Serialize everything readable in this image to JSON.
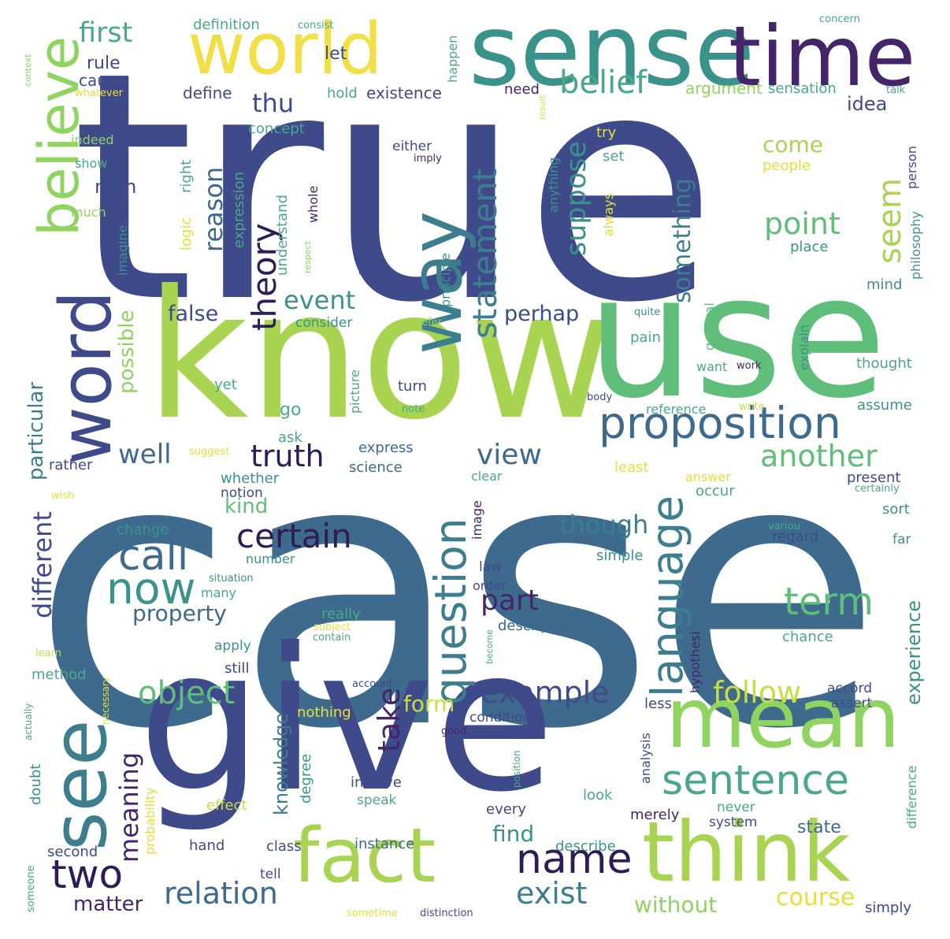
{
  "palette": {
    "background": "#ffffff",
    "c1": "#404b8c",
    "c2": "#3f6790",
    "c3": "#2f8f8c",
    "c4": "#3aa58c",
    "c5": "#6cc87a",
    "c6": "#a5d654",
    "c7": "#e6df3a",
    "c8": "#481e6b",
    "c9": "#5aa0a3"
  },
  "words": [
    {
      "t": "true",
      "c": "#3f4a8a"
    },
    {
      "t": "case",
      "c": "#3d6a8d"
    },
    {
      "t": "give",
      "c": "#3f4a8a"
    },
    {
      "t": "know",
      "c": "#a8d452"
    },
    {
      "t": "use",
      "c": "#5fbe7a"
    },
    {
      "t": "sense",
      "c": "#3a938a"
    },
    {
      "t": "time",
      "c": "#44256a"
    },
    {
      "t": "world",
      "c": "#f0e046"
    },
    {
      "t": "way",
      "c": "#3c7d8e"
    },
    {
      "t": "fact",
      "c": "#a8d452"
    },
    {
      "t": "think",
      "c": "#a8d452"
    },
    {
      "t": "mean",
      "c": "#8fd360"
    },
    {
      "t": "see",
      "c": "#3c7d8e"
    },
    {
      "t": "word",
      "c": "#3f4a8a"
    },
    {
      "t": "believe",
      "c": "#8fd360"
    },
    {
      "t": "proposition",
      "c": "#3d6a8d"
    },
    {
      "t": "sentence",
      "c": "#4aa88a"
    },
    {
      "t": "language",
      "c": "#3c7d8e"
    },
    {
      "t": "question",
      "c": "#3c7d8e"
    },
    {
      "t": "statement",
      "c": "#3c7d8e"
    },
    {
      "t": "name",
      "c": "#2e1c55"
    },
    {
      "t": "two",
      "c": "#2e1c55"
    },
    {
      "t": "now",
      "c": "#3a938a"
    },
    {
      "t": "call",
      "c": "#3d6a8d"
    },
    {
      "t": "theory",
      "c": "#2e1c55"
    },
    {
      "t": "certain",
      "c": "#2e1c55"
    },
    {
      "t": "truth",
      "c": "#2e1c55"
    },
    {
      "t": "object",
      "c": "#5fbe7a"
    },
    {
      "t": "relation",
      "c": "#3d6a8d"
    },
    {
      "t": "exist",
      "c": "#3c7d8e"
    },
    {
      "t": "term",
      "c": "#5fbe7a"
    },
    {
      "t": "example",
      "c": "#3f4a8a"
    },
    {
      "t": "follow",
      "c": "#c8dd42"
    },
    {
      "t": "belief",
      "c": "#4aa88a"
    },
    {
      "t": "seem",
      "c": "#a8d452"
    },
    {
      "t": "suppose",
      "c": "#3a938a"
    },
    {
      "t": "something",
      "c": "#3c7d8e"
    },
    {
      "t": "point",
      "c": "#5fbe7a"
    },
    {
      "t": "another",
      "c": "#5fbe7a"
    },
    {
      "t": "view",
      "c": "#3d6a8d"
    },
    {
      "t": "part",
      "c": "#44256a"
    },
    {
      "t": "though",
      "c": "#3c7d8e"
    },
    {
      "t": "take",
      "c": "#44256a"
    },
    {
      "t": "first",
      "c": "#4aa88a"
    },
    {
      "t": "thu",
      "c": "#3f4a8a"
    },
    {
      "t": "reason",
      "c": "#3d6a8d"
    },
    {
      "t": "event",
      "c": "#3a938a"
    },
    {
      "t": "well",
      "c": "#3d6a8d"
    },
    {
      "t": "meaning",
      "c": "#44256a"
    },
    {
      "t": "different",
      "c": "#3f4a8a"
    },
    {
      "t": "particular",
      "c": "#3c7d8e"
    },
    {
      "t": "possible",
      "c": "#8fd360"
    },
    {
      "t": "false",
      "c": "#3f4a8a"
    },
    {
      "t": "perhap",
      "c": "#3f4a8a"
    },
    {
      "t": "kind",
      "c": "#5fbe7a"
    },
    {
      "t": "property",
      "c": "#3d6a8d"
    },
    {
      "t": "knowledge",
      "c": "#3c7d8e"
    },
    {
      "t": "form",
      "c": "#c8dd42"
    },
    {
      "t": "find",
      "c": "#3a938a"
    },
    {
      "t": "without",
      "c": "#8fd360"
    },
    {
      "t": "course",
      "c": "#e6df3a"
    },
    {
      "t": "experience",
      "c": "#3a938a"
    },
    {
      "t": "matter",
      "c": "#44256a"
    },
    {
      "t": "come",
      "c": "#a8d452"
    },
    {
      "t": "idea",
      "c": "#3f4a8a"
    },
    {
      "t": "man",
      "c": "#3f4a8a"
    },
    {
      "t": "let",
      "c": "#3f4a8a"
    },
    {
      "t": "rule",
      "c": "#3f4a8a"
    },
    {
      "t": "cause",
      "c": "#3f4a8a"
    },
    {
      "t": "definition",
      "c": "#4aa88a"
    },
    {
      "t": "consist",
      "c": "#4aa88a"
    },
    {
      "t": "happen",
      "c": "#4aa88a"
    },
    {
      "t": "existence",
      "c": "#3f4a8a"
    },
    {
      "t": "need",
      "c": "#44256a"
    },
    {
      "t": "hold",
      "c": "#4aa88a"
    },
    {
      "t": "define",
      "c": "#3f4a8a"
    },
    {
      "t": "concept",
      "c": "#4aa88a"
    },
    {
      "t": "argument",
      "c": "#8fd360"
    },
    {
      "t": "sensation",
      "c": "#4aa88a"
    },
    {
      "t": "concern",
      "c": "#4aa88a"
    },
    {
      "t": "talk",
      "c": "#4aa88a"
    },
    {
      "t": "context",
      "c": "#8fd360"
    },
    {
      "t": "whatever",
      "c": "#e6df3a"
    },
    {
      "t": "indeed",
      "c": "#8fd360"
    },
    {
      "t": "show",
      "c": "#4aa88a"
    },
    {
      "t": "much",
      "c": "#8fd360"
    },
    {
      "t": "either",
      "c": "#3f4a8a"
    },
    {
      "t": "imply",
      "c": "#44256a"
    },
    {
      "t": "set",
      "c": "#4aa88a"
    },
    {
      "t": "try",
      "c": "#e6df3a"
    },
    {
      "t": "people",
      "c": "#e6df3a"
    },
    {
      "t": "person",
      "c": "#3f4a8a"
    },
    {
      "t": "right",
      "c": "#4aa88a"
    },
    {
      "t": "logic",
      "c": "#e6df3a"
    },
    {
      "t": "expression",
      "c": "#4aa88a"
    },
    {
      "t": "whole",
      "c": "#44256a"
    },
    {
      "t": "understand",
      "c": "#4aa88a"
    },
    {
      "t": "problem",
      "c": "#3f4a8a"
    },
    {
      "t": "principle",
      "c": "#3a938a"
    },
    {
      "t": "anything",
      "c": "#3a938a"
    },
    {
      "t": "always",
      "c": "#e6df3a"
    },
    {
      "t": "result",
      "c": "#e6df3a"
    },
    {
      "t": "philosophy",
      "c": "#3a938a"
    },
    {
      "t": "place",
      "c": "#3a938a"
    },
    {
      "t": "mind",
      "c": "#3a938a"
    },
    {
      "t": "imagine",
      "c": "#3a938a"
    },
    {
      "t": "respect",
      "c": "#8fd360"
    },
    {
      "t": "consider",
      "c": "#3a938a"
    },
    {
      "t": "refer",
      "c": "#8fd360"
    },
    {
      "t": "quite",
      "c": "#3a938a"
    },
    {
      "t": "general",
      "c": "#5fbe7a"
    },
    {
      "t": "pain",
      "c": "#4aa88a"
    },
    {
      "t": "want",
      "c": "#4aa88a"
    },
    {
      "t": "work",
      "c": "#44256a"
    },
    {
      "t": "explain",
      "c": "#3a938a"
    },
    {
      "t": "thought",
      "c": "#4aa88a"
    },
    {
      "t": "yet",
      "c": "#4aa88a"
    },
    {
      "t": "picture",
      "c": "#4aa88a"
    },
    {
      "t": "turn",
      "c": "#3f4a8a"
    },
    {
      "t": "note",
      "c": "#4aa88a"
    },
    {
      "t": "body",
      "c": "#3f4a8a"
    },
    {
      "t": "go",
      "c": "#4aa88a"
    },
    {
      "t": "reference",
      "c": "#4aa88a"
    },
    {
      "t": "write",
      "c": "#c8dd42"
    },
    {
      "t": "assume",
      "c": "#3a938a"
    },
    {
      "t": "ask",
      "c": "#4aa88a"
    },
    {
      "t": "express",
      "c": "#3d6a8d"
    },
    {
      "t": "suggest",
      "c": "#e6df3a"
    },
    {
      "t": "rather",
      "c": "#3f4a8a"
    },
    {
      "t": "science",
      "c": "#3d6a8d"
    },
    {
      "t": "least",
      "c": "#e6df3a"
    },
    {
      "t": "answer",
      "c": "#e6df3a"
    },
    {
      "t": "present",
      "c": "#3f4a8a"
    },
    {
      "t": "certainly",
      "c": "#4aa88a"
    },
    {
      "t": "whether",
      "c": "#3a938a"
    },
    {
      "t": "notion",
      "c": "#3f4a8a"
    },
    {
      "t": "wish",
      "c": "#e6df3a"
    },
    {
      "t": "clear",
      "c": "#4aa88a"
    },
    {
      "t": "occur",
      "c": "#4aa88a"
    },
    {
      "t": "image",
      "c": "#44256a"
    },
    {
      "t": "sort",
      "c": "#3a938a"
    },
    {
      "t": "change",
      "c": "#3a938a"
    },
    {
      "t": "variou",
      "c": "#4aa88a"
    },
    {
      "t": "regard",
      "c": "#3f4a8a"
    },
    {
      "t": "far",
      "c": "#3a938a"
    },
    {
      "t": "simple",
      "c": "#3a938a"
    },
    {
      "t": "number",
      "c": "#3a938a"
    },
    {
      "t": "situation",
      "c": "#3a938a"
    },
    {
      "t": "law",
      "c": "#3f4a8a"
    },
    {
      "t": "order",
      "c": "#3f4a8a"
    },
    {
      "t": "many",
      "c": "#4aa88a"
    },
    {
      "t": "really",
      "c": "#4aa88a"
    },
    {
      "t": "subject",
      "c": "#e6df3a"
    },
    {
      "t": "description",
      "c": "#3d6a8d"
    },
    {
      "t": "contain",
      "c": "#4aa88a"
    },
    {
      "t": "hypothesi",
      "c": "#44256a"
    },
    {
      "t": "chance",
      "c": "#4aa88a"
    },
    {
      "t": "learn",
      "c": "#c8dd42"
    },
    {
      "t": "apply",
      "c": "#3a938a"
    },
    {
      "t": "become",
      "c": "#4aa88a"
    },
    {
      "t": "still",
      "c": "#3f4a8a"
    },
    {
      "t": "method",
      "c": "#4aa88a"
    },
    {
      "t": "account",
      "c": "#3f4a8a"
    },
    {
      "t": "accord",
      "c": "#3f4a8a"
    },
    {
      "t": "assert",
      "c": "#3f4a8a"
    },
    {
      "t": "less",
      "c": "#3f4a8a"
    },
    {
      "t": "actually",
      "c": "#4aa88a"
    },
    {
      "t": "necessary",
      "c": "#e6df3a"
    },
    {
      "t": "nothing",
      "c": "#e6df3a"
    },
    {
      "t": "condition",
      "c": "#3f4a8a"
    },
    {
      "t": "good",
      "c": "#44256a"
    },
    {
      "t": "analysis",
      "c": "#3f4a8a"
    },
    {
      "t": "difference",
      "c": "#4aa88a"
    },
    {
      "t": "doubt",
      "c": "#3a938a"
    },
    {
      "t": "probability",
      "c": "#e6df3a"
    },
    {
      "t": "degree",
      "c": "#3a938a"
    },
    {
      "t": "involve",
      "c": "#3f4a8a"
    },
    {
      "t": "position",
      "c": "#4aa88a"
    },
    {
      "t": "look",
      "c": "#4aa88a"
    },
    {
      "t": "effect",
      "c": "#c8dd42"
    },
    {
      "t": "speak",
      "c": "#4aa88a"
    },
    {
      "t": "every",
      "c": "#3f4a8a"
    },
    {
      "t": "merely",
      "c": "#44256a"
    },
    {
      "t": "never",
      "c": "#4aa88a"
    },
    {
      "t": "system",
      "c": "#3f4a8a"
    },
    {
      "t": "state",
      "c": "#3d6a8d"
    },
    {
      "t": "second",
      "c": "#3f4a8a"
    },
    {
      "t": "someone",
      "c": "#4aa88a"
    },
    {
      "t": "hand",
      "c": "#3f4a8a"
    },
    {
      "t": "class",
      "c": "#3f4a8a"
    },
    {
      "t": "instance",
      "c": "#3d6a8d"
    },
    {
      "t": "describe",
      "c": "#3a938a"
    },
    {
      "t": "tell",
      "c": "#3f4a8a"
    },
    {
      "t": "sometime",
      "c": "#e6df3a"
    },
    {
      "t": "distinction",
      "c": "#3f4a8a"
    },
    {
      "t": "simply",
      "c": "#3f4a8a"
    }
  ]
}
